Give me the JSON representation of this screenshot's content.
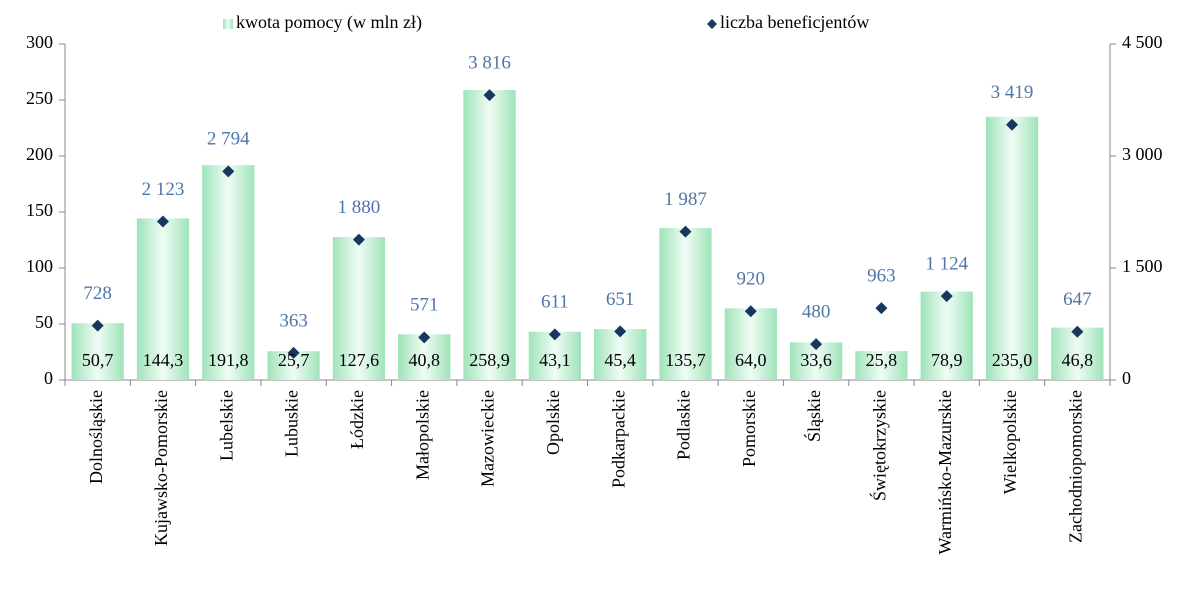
{
  "chart_data": {
    "type": "bar",
    "categories": [
      "Dolnośląskie",
      "Kujawsko-Pomorskie",
      "Lubelskie",
      "Lubuskie",
      "Łódzkie",
      "Małopolskie",
      "Mazowieckie",
      "Opolskie",
      "Podkarpackie",
      "Podlaskie",
      "Pomorskie",
      "Śląskie",
      "Świętokrzyskie",
      "Warmińsko-Mazurskie",
      "Wielkopolskie",
      "Zachodniopomorskie"
    ],
    "series": [
      {
        "name": "kwota pomocy (w mln zł)",
        "type": "bar",
        "color": "#9fe3b9",
        "values": [
          50.7,
          144.3,
          191.8,
          25.7,
          127.6,
          40.8,
          258.9,
          43.1,
          45.4,
          135.7,
          64.0,
          33.6,
          25.8,
          78.9,
          235.0,
          46.8
        ],
        "value_labels": [
          "50,7",
          "144,3",
          "191,8",
          "25,7",
          "127,6",
          "40,8",
          "258,9",
          "43,1",
          "45,4",
          "135,7",
          "64,0",
          "33,6",
          "25,8",
          "78,9",
          "235,0",
          "46,8"
        ]
      },
      {
        "name": "liczba beneficjentów",
        "type": "scatter",
        "axis": "y2",
        "color": "#17375e",
        "values": [
          728,
          2123,
          2794,
          363,
          1880,
          571,
          3816,
          611,
          651,
          1987,
          920,
          480,
          963,
          1124,
          3419,
          647
        ],
        "value_labels": [
          "728",
          "2 123",
          "2 794",
          "363",
          "1 880",
          "571",
          "3 816",
          "611",
          "651",
          "1 987",
          "920",
          "480",
          "963",
          "1 124",
          "3 419",
          "647"
        ]
      }
    ],
    "ylim": [
      0,
      300
    ],
    "yticks": [
      0,
      50,
      100,
      150,
      200,
      250,
      300
    ],
    "y2lim": [
      0,
      4500
    ],
    "y2ticks": [
      0,
      {
        "value": 1500,
        "label": "1 500"
      },
      {
        "value": 3000,
        "label": "3 000"
      },
      {
        "value": 4500,
        "label": "4 500"
      }
    ],
    "legend": "top"
  }
}
